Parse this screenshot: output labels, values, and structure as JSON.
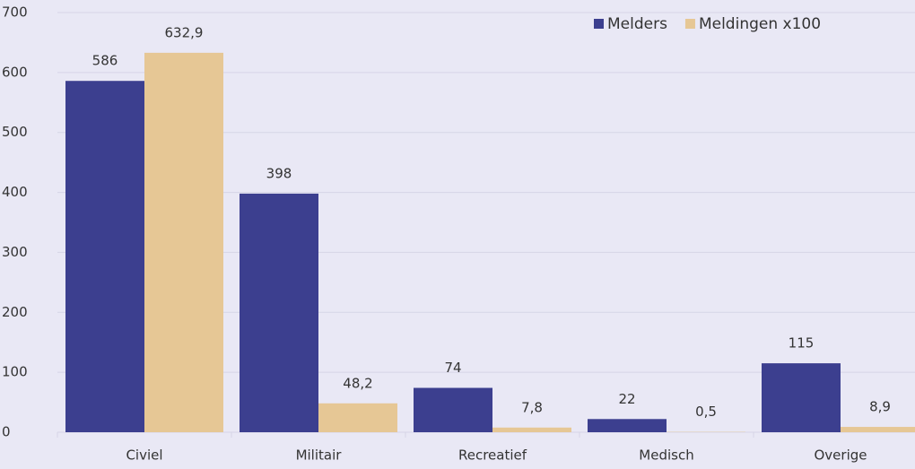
{
  "chart_data": {
    "type": "bar",
    "categories": [
      "Civiel",
      "Militair",
      "Recreatief",
      "Medisch",
      "Overige"
    ],
    "series": [
      {
        "name": "Melders",
        "color": "#3c3f8f",
        "values": [
          586,
          398,
          74,
          22,
          115
        ]
      },
      {
        "name": "Meldingen x100",
        "color": "#e6c795",
        "values": [
          632.9,
          48.2,
          7.8,
          0.5,
          8.9
        ],
        "value_labels": [
          "632,9",
          "48,2",
          "7,8",
          "0,5",
          "8,9"
        ]
      }
    ],
    "ylim": [
      0,
      700
    ],
    "yticks": [
      0,
      100,
      200,
      300,
      400,
      500,
      600,
      700
    ],
    "grid": true,
    "legend": "top-right"
  }
}
